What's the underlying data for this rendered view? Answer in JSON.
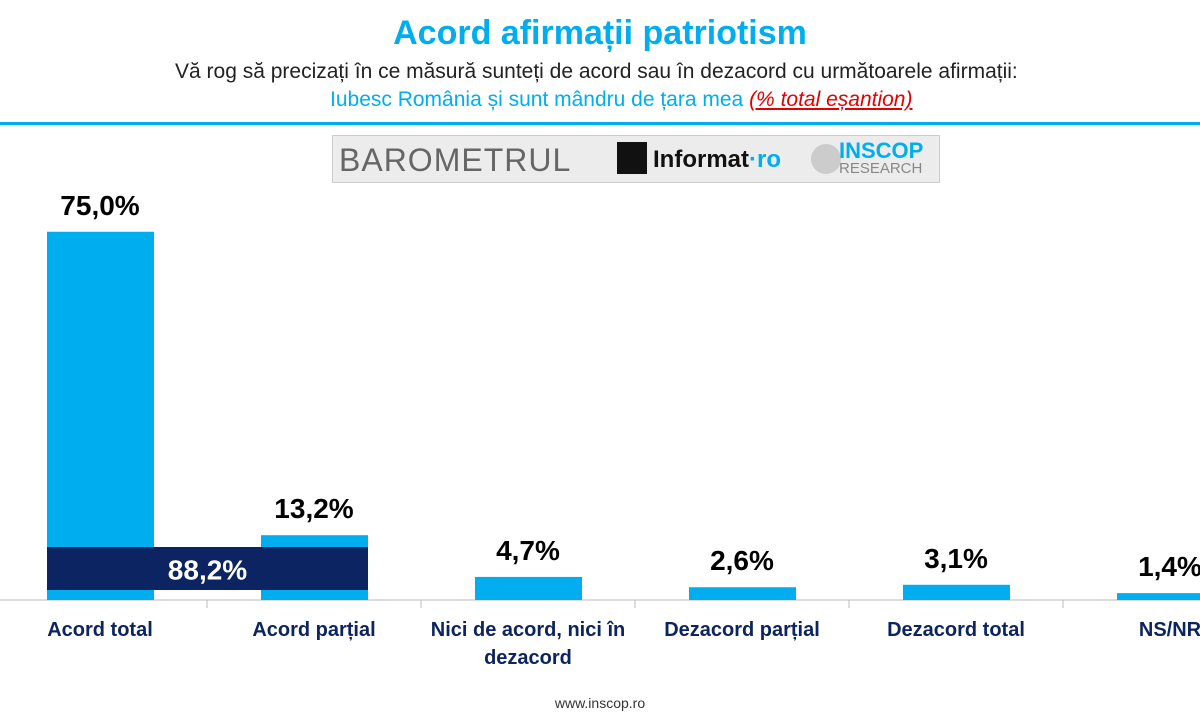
{
  "header": {
    "title": "Acord afirmații patriotism",
    "question": "Vă rog să precizați în ce măsură sunteți de acord sau în dezacord cu următoarele afirmații:",
    "statement": "Iubesc România și sunt mândru de țara mea",
    "note": "(% total eșantion)"
  },
  "logos": {
    "barometer": "BAROMETRUL",
    "informat": "Informat",
    "informat_domain": "·ro",
    "inscop": "INSCOP",
    "inscop_sub": "RESEARCH"
  },
  "chart_data": {
    "type": "bar",
    "categories": [
      "Acord total",
      "Acord parțial",
      "Nici de acord, nici în dezacord",
      "Dezacord parțial",
      "Dezacord total",
      "NS/NR"
    ],
    "values": [
      75.0,
      13.2,
      4.7,
      2.6,
      3.1,
      1.4
    ],
    "value_labels": [
      "75,0%",
      "13,2%",
      "4,7%",
      "2,6%",
      "3,1%",
      "1,4%"
    ],
    "color": "#00aeef",
    "ylim": [
      0,
      100
    ],
    "total_agree": {
      "value": 88.2,
      "label": "88,2%",
      "color": "#0c2461"
    }
  },
  "footer": {
    "url": "www.inscop.ro"
  }
}
